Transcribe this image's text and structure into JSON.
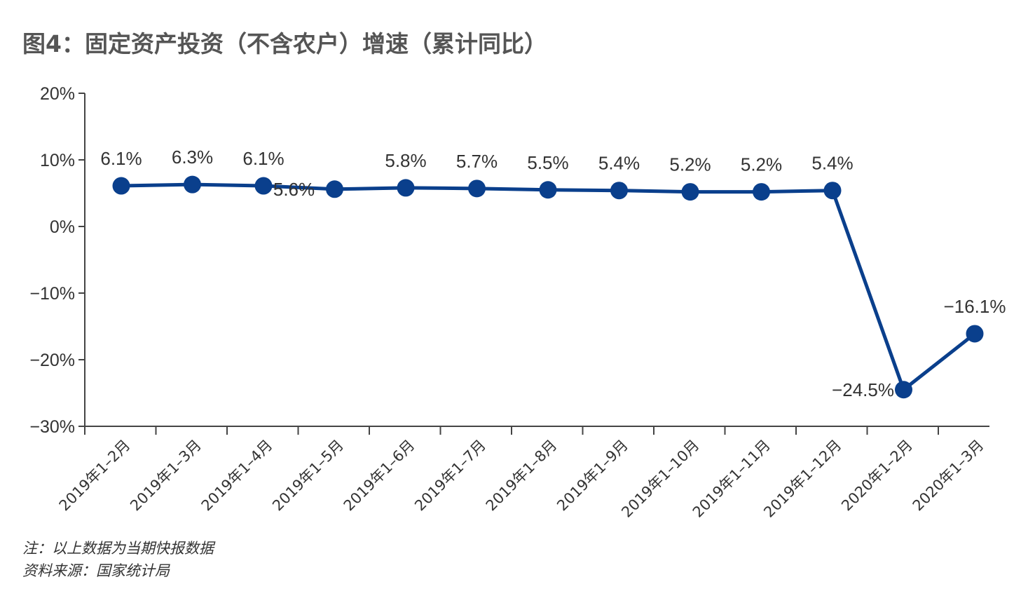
{
  "chart_data": {
    "type": "line",
    "title": "图4：固定资产投资（不含农户）增速（累计同比）",
    "categories": [
      "2019年1–2月",
      "2019年1–3月",
      "2019年1–4月",
      "2019年1–5月",
      "2019年1–6月",
      "2019年1–7月",
      "2019年1–8月",
      "2019年1–9月",
      "2019年1–10月",
      "2019年1–11月",
      "2019年1–12月",
      "2020年1–2月",
      "2020年1–3月"
    ],
    "series": [
      {
        "values": [
          6.1,
          6.3,
          6.1,
          5.6,
          5.8,
          5.7,
          5.5,
          5.4,
          5.2,
          5.2,
          5.4,
          -24.5,
          -16.1
        ],
        "data_labels": [
          "6.1%",
          "6.3%",
          "6.1%",
          "5.6%",
          "5.8%",
          "5.7%",
          "5.5%",
          "5.4%",
          "5.2%",
          "5.2%",
          "5.4%",
          "−24.5%",
          "−16.1%"
        ],
        "color": "#0a3f8c"
      }
    ],
    "ylim": [
      -30,
      20
    ],
    "yticks": [
      20,
      10,
      0,
      -10,
      -20,
      -30
    ],
    "ytick_labels": [
      "20%",
      "10%",
      "0%",
      "−10%",
      "−20%",
      "−30%"
    ],
    "xlabel": "",
    "ylabel": "",
    "grid": false,
    "axis_color": "#444444"
  },
  "footnotes": {
    "note": "注：以上数据为当期快报数据",
    "source": "资料来源：国家统计局"
  }
}
